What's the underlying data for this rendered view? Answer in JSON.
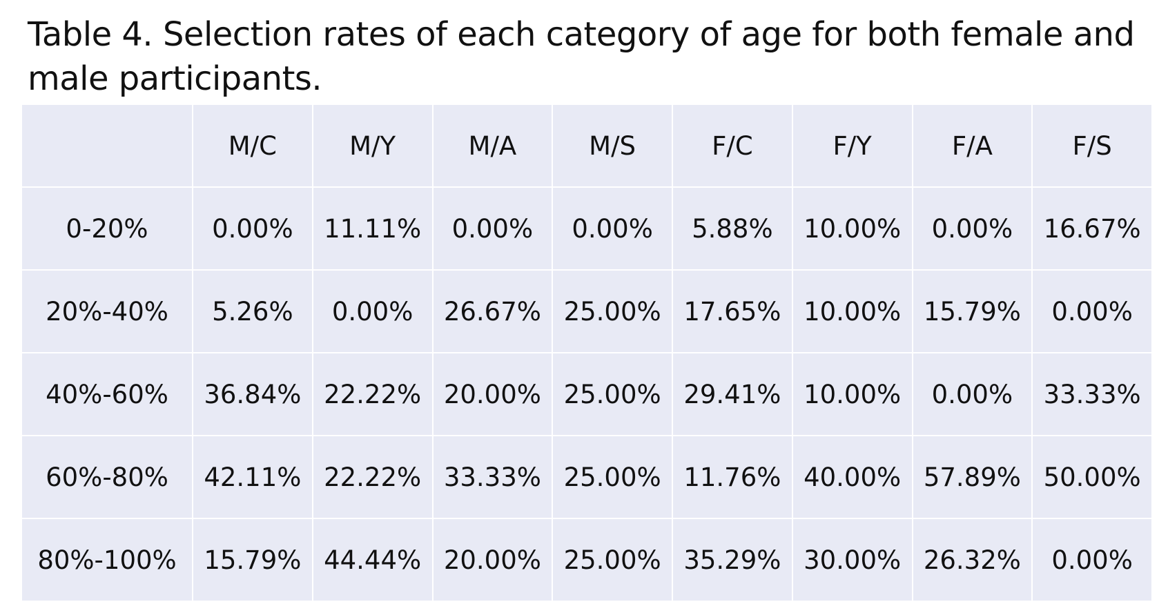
{
  "caption": "Table 4. Selection rates of each category of age for both female and male participants.",
  "table": {
    "corner": "",
    "columns": [
      "M/C",
      "M/Y",
      "M/A",
      "M/S",
      "F/C",
      "F/Y",
      "F/A",
      "F/S"
    ],
    "rows": [
      {
        "label": "0-20%",
        "cells": [
          "0.00%",
          "11.11%",
          "0.00%",
          "0.00%",
          "5.88%",
          "10.00%",
          "0.00%",
          "16.67%"
        ]
      },
      {
        "label": "20%-40%",
        "cells": [
          "5.26%",
          "0.00%",
          "26.67%",
          "25.00%",
          "17.65%",
          "10.00%",
          "15.79%",
          "0.00%"
        ]
      },
      {
        "label": "40%-60%",
        "cells": [
          "36.84%",
          "22.22%",
          "20.00%",
          "25.00%",
          "29.41%",
          "10.00%",
          "0.00%",
          "33.33%"
        ]
      },
      {
        "label": "60%-80%",
        "cells": [
          "42.11%",
          "22.22%",
          "33.33%",
          "25.00%",
          "11.76%",
          "40.00%",
          "57.89%",
          "50.00%"
        ]
      },
      {
        "label": "80%-100%",
        "cells": [
          "15.79%",
          "44.44%",
          "20.00%",
          "25.00%",
          "35.29%",
          "30.00%",
          "26.32%",
          "0.00%"
        ]
      }
    ]
  },
  "colors": {
    "cell_background": "#e8eaf5",
    "grid_line": "#ffffff",
    "text": "#111111"
  }
}
